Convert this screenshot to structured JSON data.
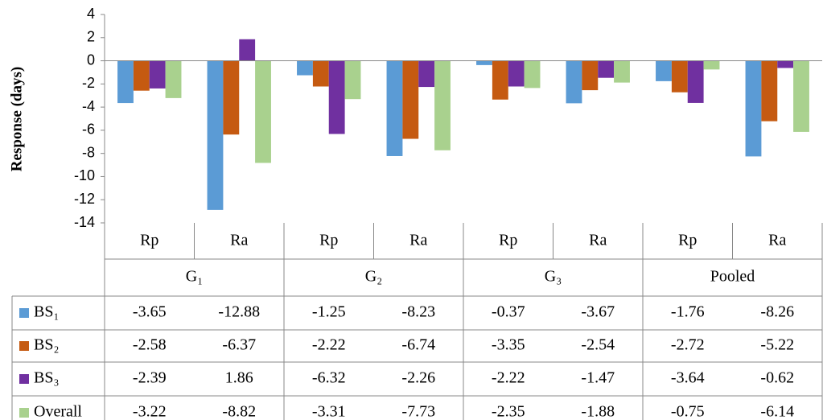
{
  "chart_data": {
    "type": "bar",
    "y_label": "Response (days)",
    "categories": [
      "Rp",
      "Ra",
      "Rp",
      "Ra",
      "Rp",
      "Ra",
      "Rp",
      "Ra"
    ],
    "groups": [
      "G₁",
      "G₂",
      "G₃",
      "Pooled"
    ],
    "series": [
      {
        "name": "BS₁",
        "color": "#5b9bd5",
        "values": [
          -3.65,
          -12.88,
          -1.25,
          -8.23,
          -0.37,
          -3.67,
          -1.76,
          -8.26
        ]
      },
      {
        "name": "BS₂",
        "color": "#c55a11",
        "values": [
          -2.58,
          -6.37,
          -2.22,
          -6.74,
          -3.35,
          -2.54,
          -2.72,
          -5.22
        ]
      },
      {
        "name": "BS₃",
        "color": "#7030a0",
        "values": [
          -2.39,
          1.86,
          -6.32,
          -2.26,
          -2.22,
          -1.47,
          -3.64,
          -0.62
        ]
      },
      {
        "name": "Overall",
        "color": "#a9d18e",
        "values": [
          -3.22,
          -8.82,
          -3.31,
          -7.73,
          -2.35,
          -1.88,
          -0.75,
          -6.14
        ]
      }
    ],
    "ylim": [
      -14,
      4
    ],
    "yticks": [
      -14,
      -12,
      -10,
      -8,
      -6,
      -4,
      -2,
      0,
      2,
      4
    ]
  }
}
